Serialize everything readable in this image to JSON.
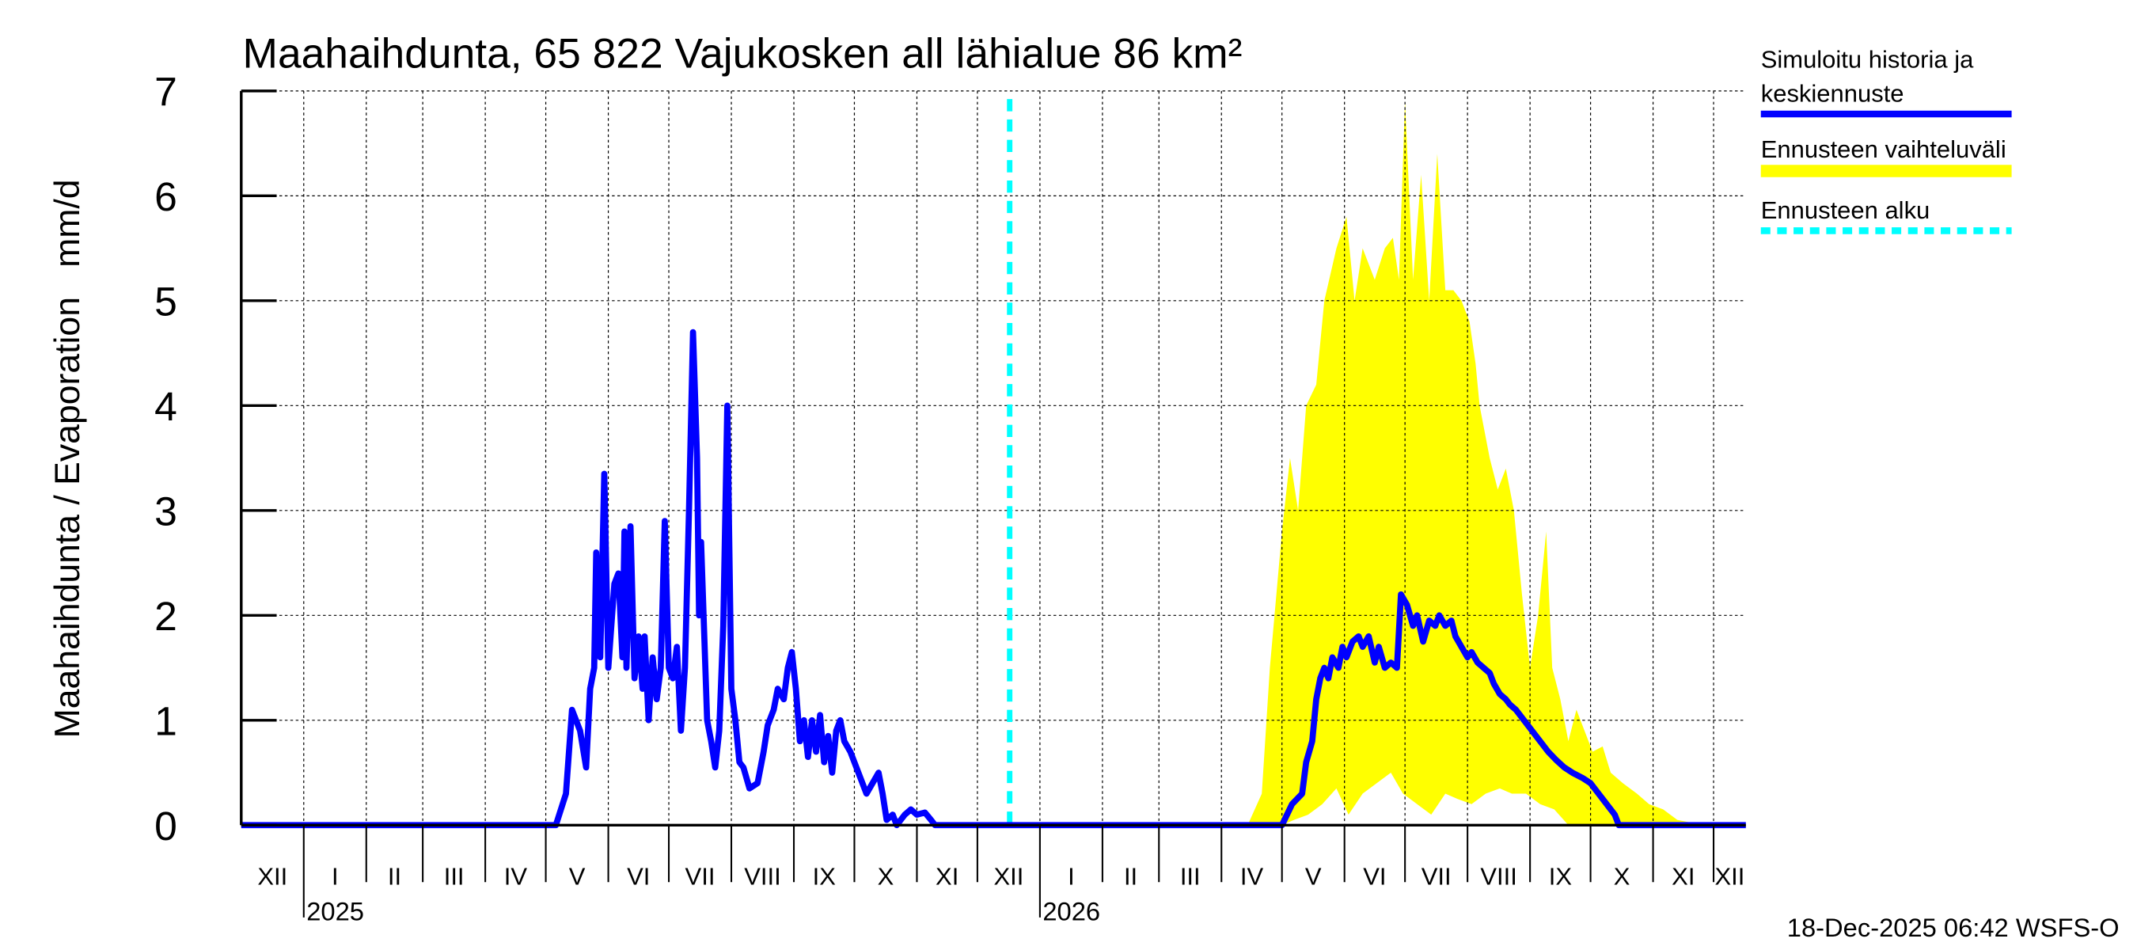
{
  "chart_data": {
    "type": "line",
    "title": "Maahaihdunta, 65 822 Vajukosken all lähialue 86 km²",
    "ylabel": "Maahaihdunta / Evaporation   mm/d",
    "xlabel": "",
    "x_unit": "days since 2024-12-01",
    "ylim": [
      0,
      7
    ],
    "xlim": [
      0,
      746
    ],
    "y_ticks": [
      "0",
      "1",
      "2",
      "3",
      "4",
      "5",
      "6",
      "7"
    ],
    "grid": true,
    "month_ticks": {
      "days": [
        0,
        31,
        62,
        90,
        121,
        151,
        182,
        212,
        243,
        274,
        304,
        335,
        365,
        396,
        427,
        455,
        486,
        516,
        547,
        577,
        608,
        639,
        669,
        700,
        730
      ],
      "labels": [
        "XII",
        "I",
        "II",
        "III",
        "IV",
        "V",
        "VI",
        "VII",
        "VIII",
        "IX",
        "X",
        "XI",
        "XII",
        "I",
        "II",
        "III",
        "IV",
        "V",
        "VI",
        "VII",
        "VIII",
        "IX",
        "X",
        "XI",
        "XII"
      ]
    },
    "year_labels": [
      {
        "day": 31,
        "label": "2025"
      },
      {
        "day": 396,
        "label": "2026"
      }
    ],
    "forecast_start_day": 381,
    "legend": {
      "placement": "right",
      "items": [
        {
          "label_line1": "Simuloitu historia ja",
          "label_line2": "keskiennuste",
          "color": "#0000ff",
          "style": "solid"
        },
        {
          "label_line1": "Ennusteen vaihteluväli",
          "label_line2": "",
          "color": "#ffff00",
          "style": "band"
        },
        {
          "label_line1": "Ennusteen alku",
          "label_line2": "",
          "color": "#00ffff",
          "style": "dashed"
        }
      ]
    },
    "series": [
      {
        "name": "Simuloitu historia ja keskiennuste",
        "color": "#0000ff",
        "x": [
          0,
          156,
          161,
          164,
          168,
          171,
          173,
          175,
          176,
          178,
          180,
          182,
          185,
          187,
          189,
          190,
          191,
          193,
          195,
          197,
          199,
          200,
          202,
          204,
          206,
          208,
          210,
          212,
          214,
          216,
          218,
          220,
          222,
          224,
          226,
          227,
          228,
          231,
          233,
          235,
          237,
          239,
          241,
          243,
          245,
          247,
          249,
          252,
          256,
          259,
          261,
          264,
          266,
          269,
          271,
          273,
          275,
          277,
          279,
          281,
          283,
          285,
          287,
          289,
          291,
          293,
          295,
          297,
          299,
          302,
          305,
          308,
          310,
          313,
          316,
          318,
          320,
          323,
          325,
          329,
          332,
          335,
          339,
          342,
          344,
          516,
          521,
          526,
          528,
          531,
          533,
          535,
          537,
          539,
          541,
          544,
          546,
          548,
          551,
          554,
          556,
          559,
          562,
          564,
          567,
          570,
          573,
          575,
          578,
          581,
          583,
          586,
          589,
          592,
          594,
          597,
          600,
          602,
          605,
          608,
          610,
          613,
          616,
          619,
          621,
          624,
          627,
          629,
          632,
          636,
          640,
          644,
          648,
          652,
          656,
          660,
          665,
          669,
          673,
          677,
          681,
          683,
          746
        ],
        "y": [
          0,
          0,
          0.3,
          1.1,
          0.9,
          0.55,
          1.3,
          1.5,
          2.6,
          1.6,
          3.35,
          1.5,
          2.3,
          2.4,
          1.6,
          2.8,
          1.5,
          2.85,
          1.4,
          1.8,
          1.3,
          1.8,
          1.0,
          1.6,
          1.2,
          1.5,
          2.9,
          1.5,
          1.4,
          1.7,
          0.9,
          1.5,
          3.0,
          4.7,
          3.5,
          2.0,
          2.7,
          1.0,
          0.8,
          0.55,
          0.9,
          1.9,
          4.0,
          1.3,
          1.0,
          0.6,
          0.55,
          0.35,
          0.4,
          0.7,
          0.95,
          1.1,
          1.3,
          1.2,
          1.5,
          1.65,
          1.3,
          0.8,
          1.0,
          0.65,
          1.0,
          0.7,
          1.05,
          0.6,
          0.85,
          0.5,
          0.9,
          1.0,
          0.8,
          0.7,
          0.55,
          0.4,
          0.3,
          0.4,
          0.5,
          0.3,
          0.05,
          0.1,
          0.0,
          0.1,
          0.15,
          0.1,
          0.12,
          0.05,
          0,
          0,
          0.2,
          0.3,
          0.6,
          0.8,
          1.2,
          1.4,
          1.5,
          1.4,
          1.6,
          1.5,
          1.7,
          1.6,
          1.75,
          1.8,
          1.7,
          1.8,
          1.55,
          1.7,
          1.5,
          1.55,
          1.5,
          2.2,
          2.1,
          1.9,
          2.0,
          1.75,
          1.95,
          1.9,
          2.0,
          1.9,
          1.95,
          1.8,
          1.7,
          1.6,
          1.65,
          1.55,
          1.5,
          1.45,
          1.35,
          1.25,
          1.2,
          1.15,
          1.1,
          1.0,
          0.9,
          0.8,
          0.7,
          0.62,
          0.55,
          0.5,
          0.45,
          0.4,
          0.3,
          0.2,
          0.1,
          0,
          0
        ]
      },
      {
        "name": "Ennusteen vaihteluväli (upper)",
        "color": "#ffff00",
        "x": [
          499,
          506,
          510,
          516,
          520,
          524,
          528,
          533,
          537,
          543,
          548,
          552,
          556,
          562,
          567,
          571,
          574,
          577,
          581,
          585,
          589,
          593,
          597,
          601,
          605,
          609,
          612,
          614,
          619,
          623,
          627,
          631,
          635,
          639,
          643,
          647,
          650,
          654,
          658,
          662,
          666,
          670,
          675,
          679,
          685,
          692,
          698,
          705,
          712,
          725
        ],
        "y": [
          0,
          0.3,
          1.5,
          2.8,
          3.5,
          3.0,
          4.0,
          4.2,
          5.0,
          5.5,
          5.8,
          5.0,
          5.5,
          5.2,
          5.5,
          5.6,
          5.2,
          6.9,
          5.2,
          6.2,
          5.0,
          6.4,
          5.1,
          5.1,
          5.0,
          4.8,
          4.4,
          4.0,
          3.5,
          3.2,
          3.4,
          3.0,
          2.2,
          1.5,
          2.0,
          2.8,
          1.5,
          1.2,
          0.8,
          1.1,
          0.9,
          0.7,
          0.75,
          0.5,
          0.4,
          0.3,
          0.2,
          0.15,
          0.05,
          0
        ]
      },
      {
        "name": "Ennusteen vaihteluväli (lower)",
        "color": "#ffff00",
        "x": [
          499,
          516,
          522,
          529,
          536,
          543,
          549,
          556,
          563,
          570,
          576,
          583,
          590,
          597,
          603,
          610,
          617,
          624,
          630,
          637,
          644,
          651,
          658,
          725
        ],
        "y": [
          0,
          0,
          0.05,
          0.1,
          0.2,
          0.35,
          0.1,
          0.3,
          0.4,
          0.5,
          0.3,
          0.2,
          0.1,
          0.3,
          0.25,
          0.2,
          0.3,
          0.35,
          0.3,
          0.3,
          0.2,
          0.15,
          0,
          0
        ]
      }
    ]
  },
  "footer": {
    "timestamp": "18-Dec-2025 06:42 WSFS-O"
  }
}
